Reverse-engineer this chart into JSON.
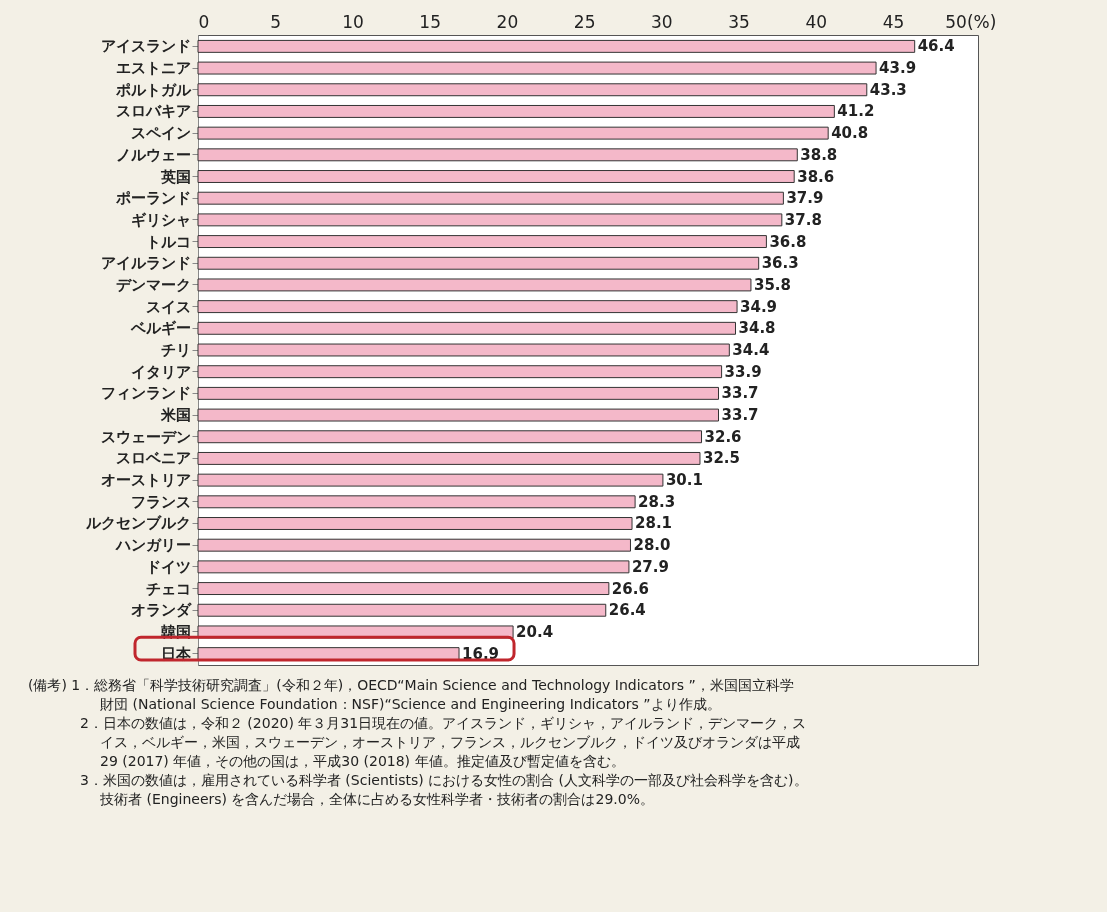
{
  "chart_data": {
    "type": "bar",
    "orientation": "horizontal",
    "categories": [
      "アイスランド",
      "エストニア",
      "ポルトガル",
      "スロバキア",
      "スペイン",
      "ノルウェー",
      "英国",
      "ポーランド",
      "ギリシャ",
      "トルコ",
      "アイルランド",
      "デンマーク",
      "スイス",
      "ベルギー",
      "チリ",
      "イタリア",
      "フィンランド",
      "米国",
      "スウェーデン",
      "スロベニア",
      "オーストリア",
      "フランス",
      "ルクセンブルク",
      "ハンガリー",
      "ドイツ",
      "チェコ",
      "オランダ",
      "韓国",
      "日本"
    ],
    "values": [
      46.4,
      43.9,
      43.3,
      41.2,
      40.8,
      38.8,
      38.6,
      37.9,
      37.8,
      36.8,
      36.3,
      35.8,
      34.9,
      34.8,
      34.4,
      33.9,
      33.7,
      33.7,
      32.6,
      32.5,
      30.1,
      28.3,
      28.1,
      28.0,
      27.9,
      26.6,
      26.4,
      20.4,
      16.9
    ],
    "value_labels": [
      "46.4",
      "43.9",
      "43.3",
      "41.2",
      "40.8",
      "38.8",
      "38.6",
      "37.9",
      "37.8",
      "36.8",
      "36.3",
      "35.8",
      "34.9",
      "34.8",
      "34.4",
      "33.9",
      "33.7",
      "33.7",
      "32.6",
      "32.5",
      "30.1",
      "28.3",
      "28.1",
      "28.0",
      "27.9",
      "26.6",
      "26.4",
      "20.4",
      "16.9"
    ],
    "color": "#f4b8c9",
    "xlim": [
      0,
      50.5
    ],
    "xticks": [
      0,
      5,
      10,
      15,
      20,
      25,
      30,
      35,
      40,
      45,
      {
        "value": 50,
        "label": "50(%)"
      }
    ],
    "grid": false,
    "annotations": [
      "(備考) 1．総務省「科学技術研究調査」(令和２年)，OECD“Main Science and Technology Indicators ”，米国国立科学",
      "財団 (National Science Foundation：NSF)“Science and Engineering Indicators ”より作成。",
      "2．日本の数値は，令和２ (2020) 年３月31日現在の値。アイスランド，ギリシャ，アイルランド，デンマーク，ス",
      "イス，ベルギー，米国，スウェーデン，オーストリア，フランス，ルクセンブルク，ドイツ及びオランダは平成",
      "29 (2017) 年値，その他の国は，平成30 (2018) 年値。推定値及び暫定値を含む。",
      "3．米国の数値は，雇用されている科学者 (Scientists) における女性の割合 (人文科学の一部及び社会科学を含む)。",
      "技術者 (Engineers) を含んだ場合，全体に占める女性科学者・技術者の割合は29.0%。"
    ]
  }
}
